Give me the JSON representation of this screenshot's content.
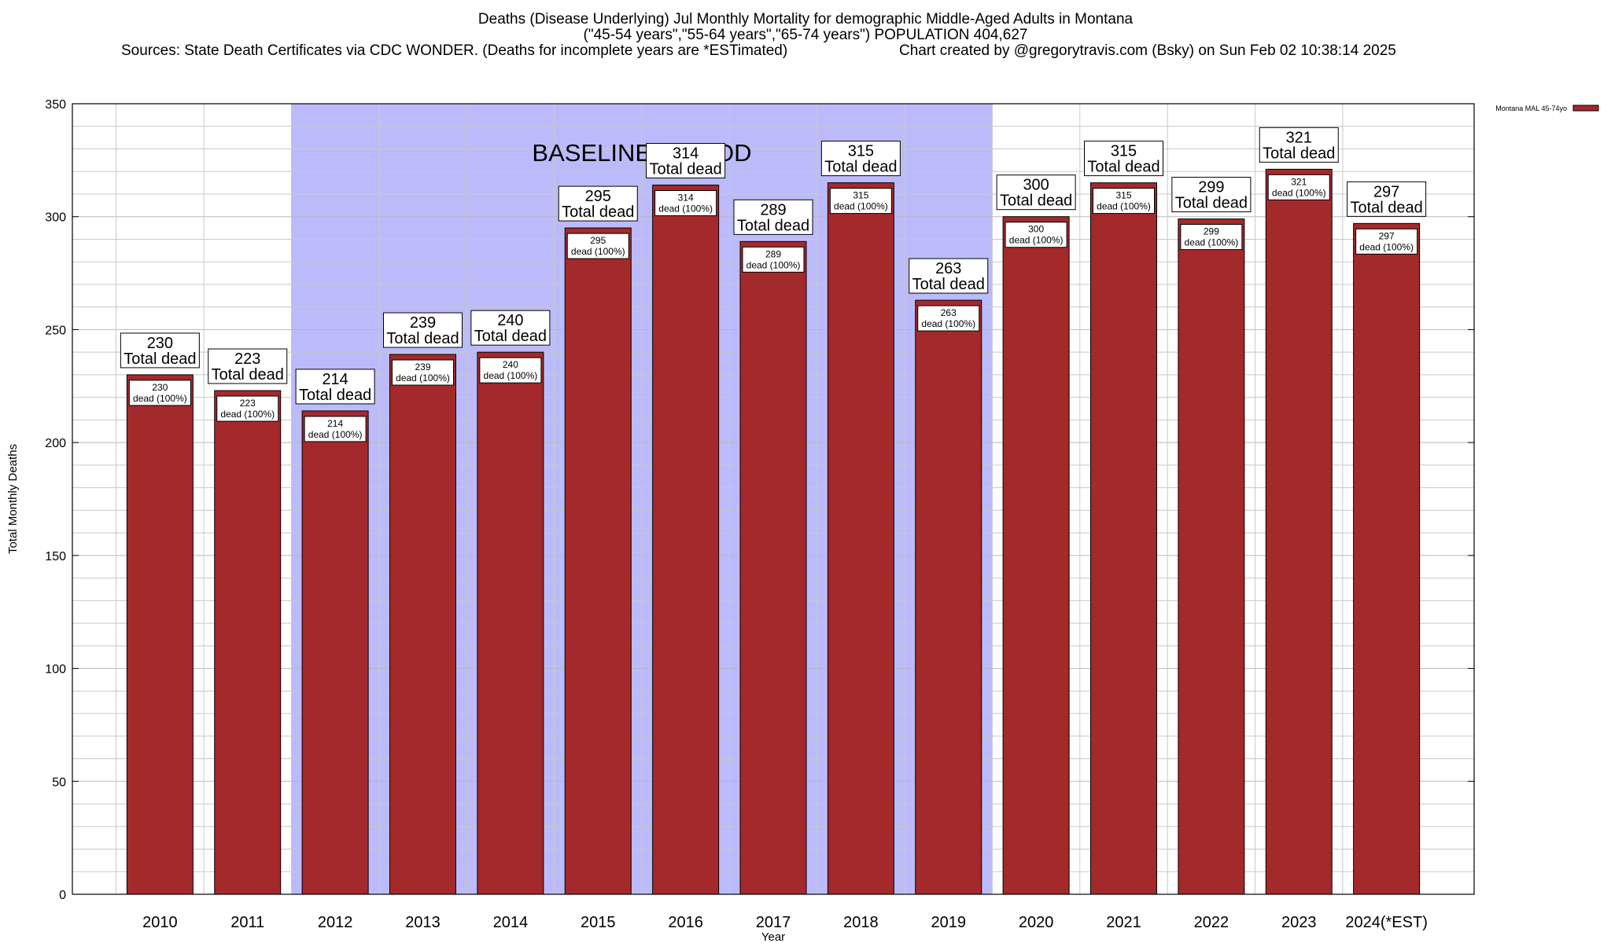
{
  "titles": {
    "line1": "Deaths (Disease Underlying) Jul Monthly Mortality for demographic Middle-Aged Adults in Montana",
    "line2": "(\"45-54 years\",\"55-64 years\",\"65-74 years\") POPULATION 404,627",
    "line3_left": "Sources: State Death Certificates via CDC WONDER. (Deaths for incomplete years are *ESTimated)",
    "line3_right": "Chart created by @gregorytravis.com (Bsky) on Sun Feb 02 10:38:14 2025"
  },
  "chart_data": {
    "type": "bar",
    "categories": [
      "2010",
      "2011",
      "2012",
      "2013",
      "2014",
      "2015",
      "2016",
      "2017",
      "2018",
      "2019",
      "2020",
      "2021",
      "2022",
      "2023",
      "2024(*EST)"
    ],
    "series": [
      {
        "name": "Montana MAL 45-74yo",
        "values": [
          230,
          223,
          214,
          239,
          240,
          295,
          314,
          289,
          315,
          263,
          300,
          315,
          299,
          321,
          297
        ]
      }
    ],
    "top_label_suffix": "Total dead",
    "inner_label_suffix": "dead (100%)",
    "xlabel": "Year",
    "ylabel": "Total Monthly Deaths",
    "ylim": [
      0,
      350
    ],
    "yticks": [
      0,
      50,
      100,
      150,
      200,
      250,
      300,
      350
    ],
    "grid": true,
    "legend_position": "top-right",
    "baseline_period": {
      "label": "BASELINE PERIOD",
      "from": "2012",
      "to": "2019"
    },
    "colors": {
      "bar": "#a4292b",
      "baseline_shade": "#bbbbfb",
      "grid": "#c8c8c8"
    }
  }
}
